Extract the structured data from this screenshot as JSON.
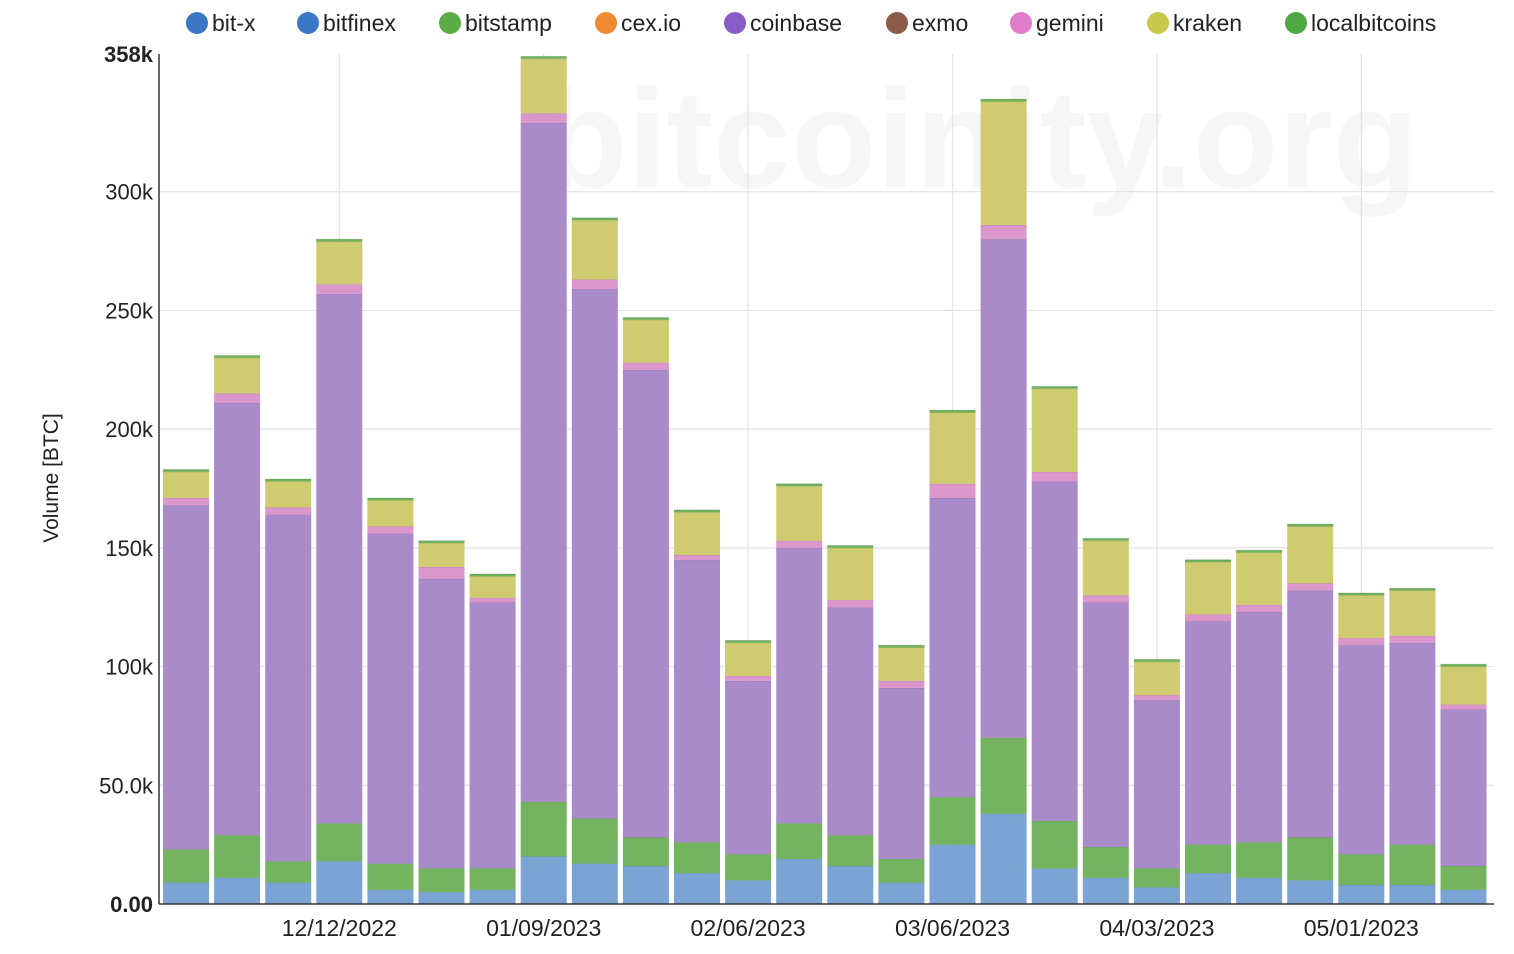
{
  "chart_data": {
    "type": "bar",
    "stacked": true,
    "watermark": "bitcoinity.org",
    "ylabel": "Volume [BTC]",
    "ylim": [
      0,
      358000
    ],
    "y_ticks": [
      {
        "value": 0,
        "label": "0.00",
        "bold": true
      },
      {
        "value": 50000,
        "label": "50.0k"
      },
      {
        "value": 100000,
        "label": "100k"
      },
      {
        "value": 150000,
        "label": "150k"
      },
      {
        "value": 200000,
        "label": "200k"
      },
      {
        "value": 250000,
        "label": "250k"
      },
      {
        "value": 300000,
        "label": "300k"
      },
      {
        "value": 358000,
        "label": "358k",
        "bold": true
      }
    ],
    "x_tick_labels": [
      {
        "label": "12/12/2022",
        "bar_index": 3
      },
      {
        "label": "01/09/2023",
        "bar_index": 7
      },
      {
        "label": "02/06/2023",
        "bar_index": 11
      },
      {
        "label": "03/06/2023",
        "bar_index": 15
      },
      {
        "label": "04/03/2023",
        "bar_index": 19
      },
      {
        "label": "05/01/2023",
        "bar_index": 23
      }
    ],
    "legend": [
      {
        "name": "bit-x",
        "color": "#3a77c4"
      },
      {
        "name": "bitfinex",
        "color": "#3a77c4"
      },
      {
        "name": "bitstamp",
        "color": "#5aac44"
      },
      {
        "name": "cex.io",
        "color": "#f08a30"
      },
      {
        "name": "coinbase",
        "color": "#8a5cc8"
      },
      {
        "name": "exmo",
        "color": "#8b5a4a"
      },
      {
        "name": "gemini",
        "color": "#e07cc8"
      },
      {
        "name": "kraken",
        "color": "#c8c84a"
      },
      {
        "name": "localbitcoins",
        "color": "#4ea844"
      }
    ],
    "series": [
      {
        "name": "bitfinex",
        "color": "#7ba3d4",
        "values": [
          9000,
          11000,
          9000,
          18000,
          6000,
          5000,
          6000,
          20000,
          17000,
          16000,
          13000,
          10000,
          19000,
          16000,
          9000,
          25000,
          38000,
          15000,
          11000,
          7000,
          13000,
          11000,
          10000,
          8000,
          8000,
          6000
        ]
      },
      {
        "name": "bitstamp",
        "color": "#74b460",
        "values": [
          14000,
          18000,
          9000,
          16000,
          11000,
          10000,
          9000,
          23000,
          19000,
          12000,
          13000,
          11000,
          15000,
          13000,
          10000,
          20000,
          32000,
          20000,
          13000,
          8000,
          12000,
          15000,
          18000,
          13000,
          17000,
          10000
        ]
      },
      {
        "name": "coinbase",
        "color": "#a98bc9",
        "values": [
          145000,
          182000,
          146000,
          223000,
          139000,
          122000,
          112000,
          286000,
          223000,
          197000,
          119000,
          73000,
          116000,
          96000,
          72000,
          126000,
          210000,
          143000,
          103000,
          71000,
          94000,
          97000,
          104000,
          88000,
          85000,
          66000
        ]
      },
      {
        "name": "gemini",
        "color": "#db97cb",
        "values": [
          3000,
          4000,
          3000,
          4000,
          3000,
          5000,
          2000,
          4000,
          4000,
          3000,
          2000,
          2000,
          3000,
          3000,
          3000,
          6000,
          6000,
          4000,
          3000,
          2000,
          3000,
          3000,
          3000,
          3000,
          3000,
          2000
        ]
      },
      {
        "name": "kraken",
        "color": "#cfcb71",
        "values": [
          11000,
          15000,
          11000,
          18000,
          11000,
          10000,
          9000,
          23000,
          25000,
          18000,
          18000,
          14000,
          23000,
          22000,
          14000,
          30000,
          52000,
          35000,
          23000,
          14000,
          22000,
          22000,
          24000,
          18000,
          19000,
          16000
        ]
      },
      {
        "name": "localbitcoins",
        "color": "#6fb35a",
        "values": [
          1000,
          1000,
          1000,
          1000,
          1000,
          1000,
          1000,
          1000,
          1000,
          1000,
          1000,
          1000,
          1000,
          1000,
          1000,
          1000,
          1000,
          1000,
          1000,
          1000,
          1000,
          1000,
          1000,
          1000,
          1000,
          1000
        ]
      }
    ]
  }
}
